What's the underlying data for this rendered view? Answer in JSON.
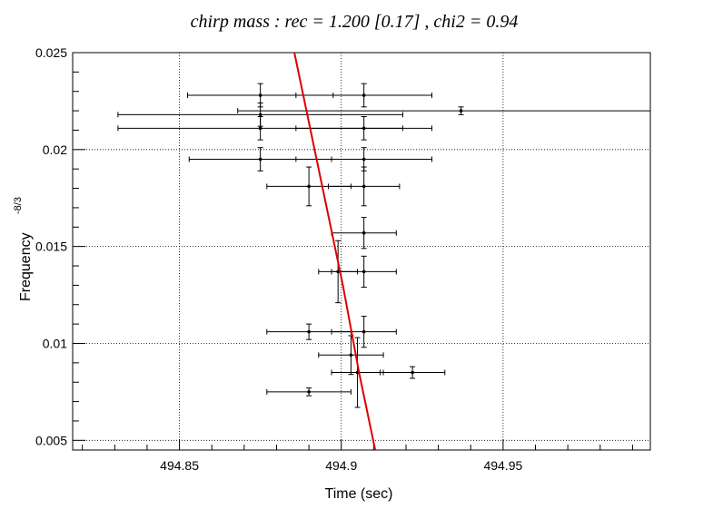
{
  "chart_data": {
    "type": "scatter",
    "title": "chirp mass : rec = 1.200 [0.17] , chi2 = 0.94",
    "xlabel": "Time (sec)",
    "ylabel": "Frequency",
    "ylabel_superscript": "-8/3",
    "xlim": [
      494.817,
      494.9955
    ],
    "ylim": [
      0.0045,
      0.025
    ],
    "xticks": [
      494.85,
      494.9,
      494.95
    ],
    "xtick_labels": [
      "494.85",
      "494.9",
      "494.95"
    ],
    "yticks": [
      0.005,
      0.01,
      0.015,
      0.02,
      0.025
    ],
    "ytick_labels": [
      "0.005",
      "0.01",
      "0.015",
      "0.02",
      "0.025"
    ],
    "grid": true,
    "points": [
      {
        "x": 494.875,
        "y": 0.0228,
        "xerr": 0.0225,
        "yerr": 0.0006
      },
      {
        "x": 494.907,
        "y": 0.0228,
        "xerr": 0.021,
        "yerr": 0.0006
      },
      {
        "x": 494.937,
        "y": 0.022,
        "xerr": 0.069,
        "yerr": 0.0002
      },
      {
        "x": 494.875,
        "y": 0.0218,
        "xerr": 0.044,
        "yerr": 0.0006
      },
      {
        "x": 494.875,
        "y": 0.0211,
        "xerr": 0.044,
        "yerr": 0.0006
      },
      {
        "x": 494.907,
        "y": 0.0211,
        "xerr": 0.021,
        "yerr": 0.0006
      },
      {
        "x": 494.875,
        "y": 0.0195,
        "xerr": 0.022,
        "yerr": 0.0006
      },
      {
        "x": 494.907,
        "y": 0.0195,
        "xerr": 0.021,
        "yerr": 0.0006
      },
      {
        "x": 494.89,
        "y": 0.0181,
        "xerr": 0.013,
        "yerr": 0.001
      },
      {
        "x": 494.907,
        "y": 0.0181,
        "xerr": 0.011,
        "yerr": 0.001
      },
      {
        "x": 494.907,
        "y": 0.0157,
        "xerr": 0.01,
        "yerr": 0.0008
      },
      {
        "x": 494.899,
        "y": 0.0137,
        "xerr": 0.006,
        "yerr": 0.0016
      },
      {
        "x": 494.907,
        "y": 0.0137,
        "xerr": 0.01,
        "yerr": 0.0008
      },
      {
        "x": 494.89,
        "y": 0.0106,
        "xerr": 0.013,
        "yerr": 0.0004
      },
      {
        "x": 494.907,
        "y": 0.0106,
        "xerr": 0.01,
        "yerr": 0.0008
      },
      {
        "x": 494.903,
        "y": 0.0094,
        "xerr": 0.01,
        "yerr": 0.001
      },
      {
        "x": 494.905,
        "y": 0.0085,
        "xerr": 0.008,
        "yerr": 0.0018
      },
      {
        "x": 494.922,
        "y": 0.0085,
        "xerr": 0.01,
        "yerr": 0.0003
      },
      {
        "x": 494.89,
        "y": 0.0075,
        "xerr": 0.013,
        "yerr": 0.0002
      }
    ],
    "fit_line": {
      "color": "#dd0000",
      "x": [
        494.8855,
        494.8905,
        494.8955,
        494.9005,
        494.9055,
        494.9105
      ],
      "y": [
        0.025,
        0.021,
        0.017,
        0.013,
        0.0085,
        0.0045
      ]
    }
  }
}
